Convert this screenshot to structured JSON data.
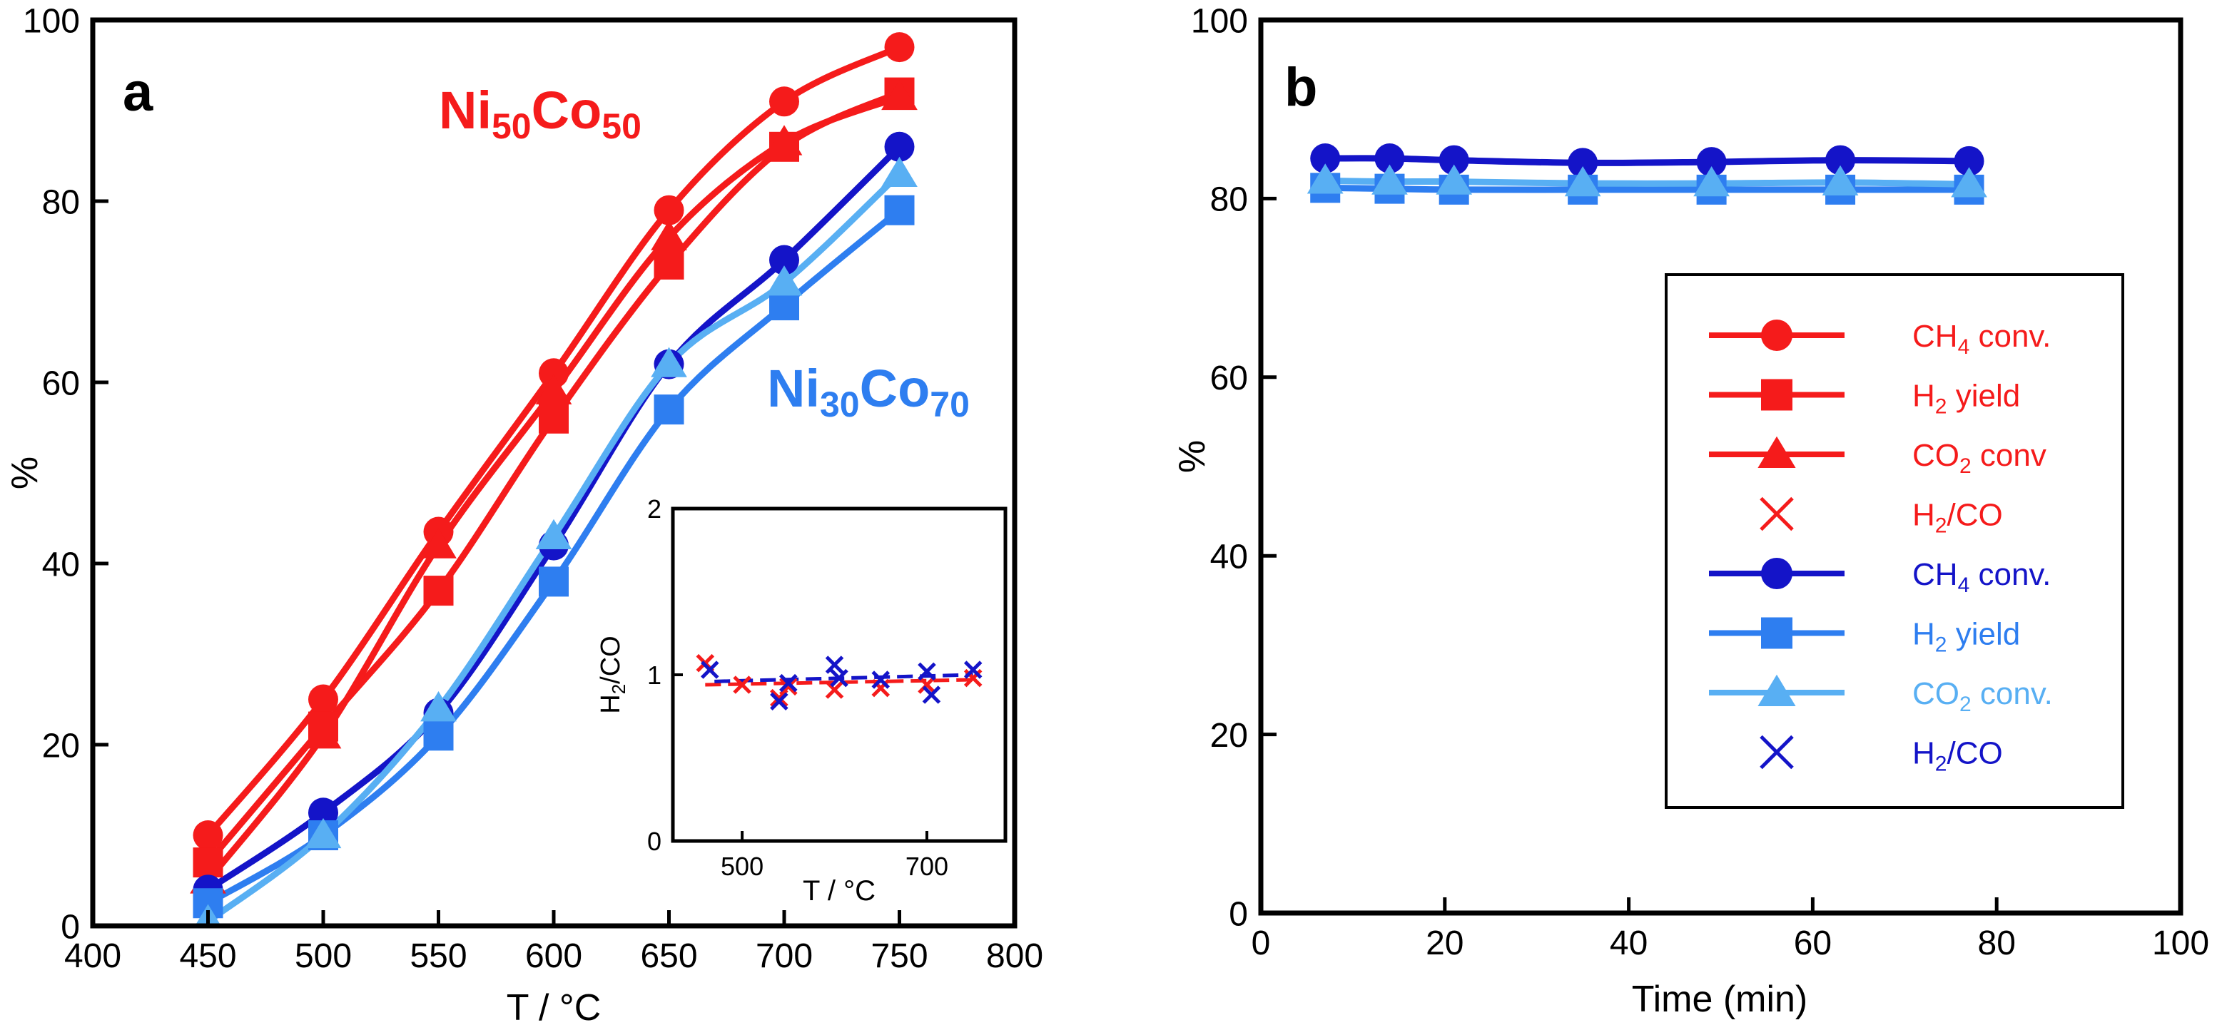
{
  "colors": {
    "red": "#f51b1b",
    "navy": "#1414c8",
    "blue": "#2e7ef0",
    "lightblue": "#58aff3",
    "black": "#000000"
  },
  "panel_a": {
    "label": "a",
    "annotations": [
      {
        "prefix": "Ni",
        "sub1": "50",
        "mid": "Co",
        "sub2": "50",
        "color": "#f51b1b"
      },
      {
        "prefix": "Ni",
        "sub1": "30",
        "mid": "Co",
        "sub2": "70",
        "color": "#2e7ef0"
      }
    ],
    "inset": {
      "ylabel": {
        "main": "H",
        "sub": "2",
        "rest": "/CO"
      },
      "xlabel": "T / °C"
    }
  },
  "panel_b": {
    "label": "b",
    "legend": [
      {
        "main": "CH",
        "sub": "4",
        "rest": " conv.",
        "color": "#f51b1b",
        "marker": "circle",
        "line": true
      },
      {
        "main": "H",
        "sub": "2",
        "rest": " yield",
        "color": "#f51b1b",
        "marker": "square",
        "line": true
      },
      {
        "main": "CO",
        "sub": "2",
        "rest": " conv",
        "color": "#f51b1b",
        "marker": "triangle",
        "line": true
      },
      {
        "main": "H",
        "sub": "2",
        "rest": "/CO",
        "color": "#f51b1b",
        "marker": "x",
        "line": false
      },
      {
        "main": "CH",
        "sub": "4",
        "rest": " conv.",
        "color": "#1414c8",
        "marker": "circle",
        "line": true
      },
      {
        "main": "H",
        "sub": "2",
        "rest": " yield",
        "color": "#2e7ef0",
        "marker": "square",
        "line": true
      },
      {
        "main": "CO",
        "sub": "2",
        "rest": " conv.",
        "color": "#58aff3",
        "marker": "triangle",
        "line": true
      },
      {
        "main": "H",
        "sub": "2",
        "rest": "/CO",
        "color": "#1414c8",
        "marker": "x",
        "line": false
      }
    ]
  },
  "chart_data": [
    {
      "type": "line",
      "panel": "a",
      "xlabel": "T / °C",
      "ylabel": "%",
      "xlim": [
        400,
        800
      ],
      "ylim": [
        0,
        100
      ],
      "xticks": [
        400,
        450,
        500,
        550,
        600,
        650,
        700,
        750,
        800
      ],
      "yticks": [
        0,
        20,
        40,
        60,
        80,
        100
      ],
      "x": [
        450,
        500,
        550,
        600,
        650,
        700,
        750
      ],
      "series": [
        {
          "color": "#f51b1b",
          "marker": "circle",
          "values": [
            10,
            25,
            43.5,
            61,
            79,
            91,
            97
          ]
        },
        {
          "color": "#f51b1b",
          "marker": "square",
          "values": [
            7,
            22,
            37,
            56,
            73,
            86,
            92
          ]
        },
        {
          "color": "#f51b1b",
          "marker": "triangle",
          "values": [
            5,
            21,
            42,
            59,
            76,
            86.5,
            91.5
          ]
        },
        {
          "color": "#1414c8",
          "marker": "circle",
          "values": [
            4,
            12.5,
            23.5,
            42,
            62,
            73.5,
            86
          ]
        },
        {
          "color": "#2e7ef0",
          "marker": "square",
          "values": [
            2.5,
            10,
            21,
            38,
            57,
            68.5,
            79
          ]
        },
        {
          "color": "#58aff3",
          "marker": "triangle",
          "values": [
            0.5,
            10,
            24,
            43,
            62,
            71,
            83
          ]
        }
      ],
      "legend": "none"
    },
    {
      "type": "scatter",
      "panel": "a-inset",
      "xlabel": "T / °C",
      "ylabel": "H2/CO",
      "xlim": [
        425,
        785
      ],
      "ylim": [
        0,
        2
      ],
      "xticks": [
        500,
        700
      ],
      "yticks": [
        0,
        1,
        2
      ],
      "series": [
        {
          "color": "#f51b1b",
          "marker": "x",
          "x": [
            460,
            500,
            540,
            550,
            600,
            650,
            700,
            750
          ],
          "y": [
            1.07,
            0.94,
            0.86,
            0.93,
            0.91,
            0.92,
            0.94,
            0.98
          ]
        },
        {
          "color": "#1414c8",
          "marker": "x",
          "x": [
            465,
            540,
            550,
            600,
            605,
            650,
            700,
            705,
            750
          ],
          "y": [
            1.03,
            0.84,
            0.95,
            1.06,
            0.98,
            0.97,
            1.02,
            0.88,
            1.03
          ]
        }
      ],
      "trend": [
        {
          "color": "#f51b1b",
          "x": [
            460,
            750
          ],
          "y": [
            0.94,
            0.97
          ]
        },
        {
          "color": "#1414c8",
          "x": [
            470,
            750
          ],
          "y": [
            0.96,
            1.0
          ]
        }
      ]
    },
    {
      "type": "line",
      "panel": "b",
      "xlabel": "Time (min)",
      "ylabel": "%",
      "xlim": [
        0,
        100
      ],
      "ylim": [
        0,
        100
      ],
      "xticks": [
        0,
        20,
        40,
        60,
        80,
        100
      ],
      "yticks": [
        0,
        20,
        40,
        60,
        80,
        100
      ],
      "x": [
        7,
        14,
        21,
        35,
        49,
        63,
        77
      ],
      "series": [
        {
          "color": "#1414c8",
          "marker": "circle",
          "values": [
            84.5,
            84.5,
            84.3,
            84,
            84.1,
            84.3,
            84.2
          ]
        },
        {
          "color": "#2e7ef0",
          "marker": "square",
          "values": [
            81.2,
            81.1,
            81,
            81,
            81,
            81,
            81
          ]
        },
        {
          "color": "#58aff3",
          "marker": "triangle",
          "values": [
            82,
            81.9,
            81.9,
            81.7,
            81.7,
            81.8,
            81.6
          ]
        }
      ],
      "legend": "right"
    }
  ]
}
